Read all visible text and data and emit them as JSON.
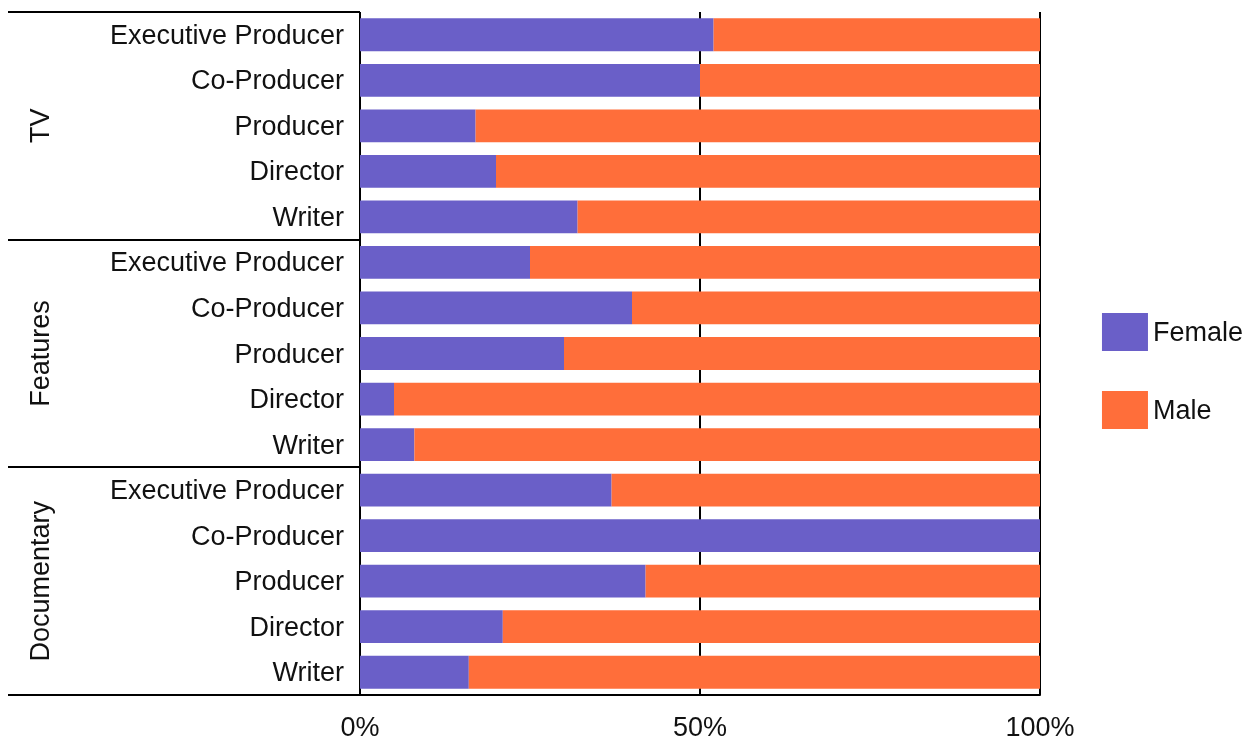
{
  "chart_data": {
    "type": "bar",
    "orientation": "horizontal",
    "stacked": true,
    "categories": [
      "Executive Producer",
      "Co-Producer",
      "Producer",
      "Director",
      "Writer",
      "Executive Producer",
      "Co-Producer",
      "Producer",
      "Director",
      "Writer",
      "Executive Producer",
      "Co-Producer",
      "Producer",
      "Director",
      "Writer"
    ],
    "series": [
      {
        "name": "Female",
        "color": "#6a5fc8",
        "values": [
          52,
          50,
          17,
          20,
          32,
          25,
          40,
          30,
          5,
          8,
          37,
          100,
          42,
          21,
          16
        ]
      },
      {
        "name": "Male",
        "color": "#ff6e3a",
        "values": [
          48,
          50,
          83,
          80,
          68,
          75,
          60,
          70,
          95,
          92,
          63,
          0,
          58,
          79,
          84
        ]
      }
    ],
    "xlim": [
      0,
      100
    ],
    "xticks": [
      {
        "value": 0,
        "label": "0%"
      },
      {
        "value": 50,
        "label": "50%"
      },
      {
        "value": 100,
        "label": "100%"
      }
    ],
    "grid": "x",
    "legend": "right",
    "annotations": [
      "TV",
      "Features",
      "Documentary"
    ]
  }
}
